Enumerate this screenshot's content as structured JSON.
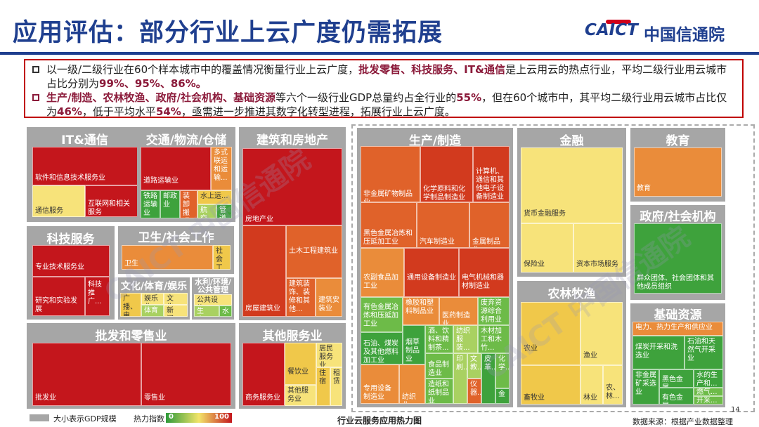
{
  "title": "应用评估：部分行业上云广度仍需拓展",
  "logo": {
    "en": "CAICT",
    "cn": "中国信通院"
  },
  "bullets": {
    "b1a": "以一级/二级行业在60个样本城市中的覆盖情况衡量行业上云广度，",
    "b1h": "批发零售、科技服务、IT&通信",
    "b1b": "是上云用云的热点行业，平均二级行业用云城市占比分别为",
    "b1n": "99%、95%、86%。",
    "b2h": "生产/制造、农林牧渔、政府/社会机构、基础资源",
    "b2a": "等六个一级行业GDP总量约占全行业的",
    "b2n1": "55%",
    "b2b": "，但在60个城市中，其平均二级行业用云城市占比仅为",
    "b2n2": "46%",
    "b2c": "，低于平均水平",
    "b2n3": "54%",
    "b2d": "，亟需进一步推进其数字化转型进程，拓展行业上云广度。"
  },
  "groups": {
    "it": "IT&通信",
    "jt": "交通/物流/仓储",
    "jz": "建筑和房地产",
    "sc": "生产/制造",
    "jr": "金融",
    "jy": "教育",
    "kj": "科技服务",
    "ws": "卫生/社会工作",
    "wh": "文化/体育/娱乐",
    "sl": "水利/环境/公共管理",
    "zf": "政府/社会机构",
    "nl": "农林牧渔",
    "pf": "批发和零售业",
    "qt": "其他服务业",
    "jc": "基础资源"
  },
  "cells": {
    "it1": "软件和信息技术服务业",
    "it2": "通信服务",
    "it3": "互联网和相关服务",
    "jt1": "道路运输业",
    "jt2": "多式联运和运输...",
    "jt3": "铁路运输业",
    "jt4": "邮政业",
    "jt5": "装卸搬运和...",
    "jt6": "水上运...",
    "jt7": "航空...",
    "jt8": "管道",
    "jz1": "房地产业",
    "jz2": "土木工程建筑业",
    "jz3": "房屋建筑业",
    "jz4": "建筑装饰、装修和其他...",
    "jz5": "建筑安装业",
    "kj1": "专业技术服务业",
    "kj2": "研究和实验发展",
    "kj3": "科技推广...",
    "ws1": "卫生",
    "ws2": "社会工作",
    "wh1": "广播、电视...",
    "wh2": "娱乐业",
    "wh3": "文化...",
    "wh4": "体育",
    "wh5": "新闻...",
    "sl1": "公共设施...",
    "sl2": "生态...",
    "sl3": "水",
    "pf1": "批发业",
    "pf2": "零售业",
    "qt1": "商务服务业",
    "qt2": "餐饮业",
    "qt3": "居民服务业",
    "qt4": "其他服务业",
    "qt5": "住宿",
    "qt6": "租赁",
    "sc1": "非金属矿物制品业",
    "sc2": "化学原料和化学制品制造业",
    "sc3": "计算机、通信和其他电子设备制造业",
    "sc4": "黑色金属冶炼和压延加工业",
    "sc5": "汽车制造业",
    "sc6": "金属制品业",
    "sc7": "农副食品加工业",
    "sc8": "通用设备制造业",
    "sc9": "电气机械和器材制造业",
    "sc10": "有色金属冶炼和压延加工业",
    "sc11": "橡胶和塑料制品业",
    "sc12": "医药制造业",
    "sc13": "废弃资源综合利用业",
    "sc14": "石油、煤炭及其他燃料加工业",
    "sc15": "烟草制品业",
    "sc16": "酒、饮料和精制茶...",
    "sc17": "纺织服装...",
    "sc18": "木材加工和木竹...",
    "sc19": "专用设备制造业",
    "sc20": "纺织业",
    "sc21": "食品制造业",
    "sc22": "造纸和纸制品业",
    "sc23": "印刷...",
    "sc24": "文教...",
    "sc25": "仪器...",
    "sc26": "皮革...",
    "sc27": "化学...",
    "sc28": "金",
    "jr1": "货币金融服务",
    "jr2": "其他金融业",
    "jr3": "保险业",
    "jr4": "资本市场服务",
    "jy1": "教育",
    "zf1": "群众团体、社会团体和其他成员组织",
    "zf2": "国家机构",
    "nl1": "农业",
    "nl2": "渔业",
    "nl3": "畜牧业",
    "nl4": "林业",
    "nl5": "农、林...",
    "jc1": "电力、热力生产和供应业",
    "jc2": "煤炭开采和洗选业",
    "jc3": "石油和天然气开采业",
    "jc4": "非金属矿采选业",
    "jc5": "黑色金属...",
    "jc6": "水的生产和...",
    "jc7": "有色金属...",
    "jc8": "燃气...",
    "jc9": "开采..."
  },
  "legend": {
    "size": "大小表示GDP规模",
    "heat": "热力指数",
    "min": "0",
    "max": "100"
  },
  "caption": "行业云服务应用热力图",
  "source": "数据来源：根据产业数据整理",
  "page": "14",
  "watermark": "CAICT 中国信通院"
}
